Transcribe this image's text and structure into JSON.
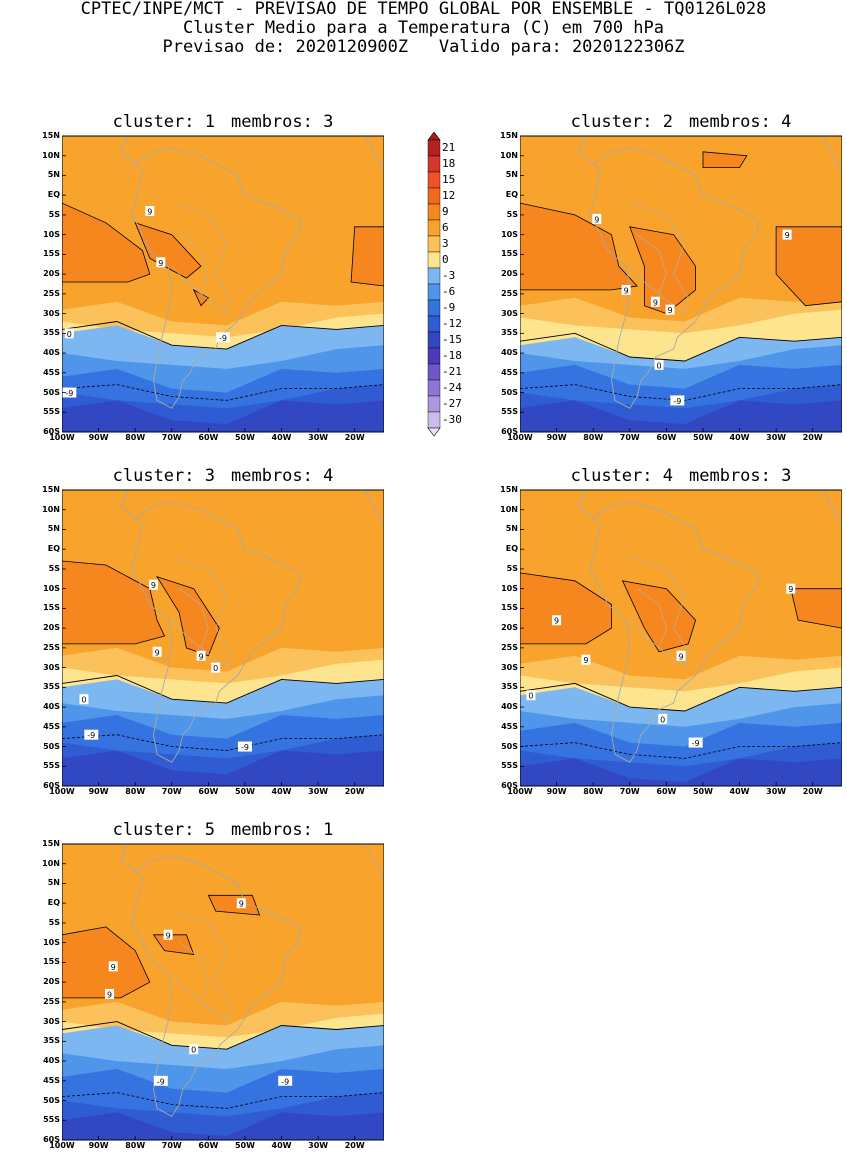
{
  "header": {
    "line1": "CPTEC/INPE/MCT - PREVISAO DE TEMPO GLOBAL POR ENSEMBLE - TQ0126L028",
    "line2": "Cluster Medio para a Temperatura (C) em 700 hPa",
    "line3_prefix": "Previsao de:",
    "forecast_date": "2020120900Z",
    "line3_valid_prefix": "Valido para:",
    "valid_date": "2020122306Z"
  },
  "axes": {
    "latitudes": [
      "15N",
      "10N",
      "5N",
      "EQ",
      "5S",
      "10S",
      "15S",
      "20S",
      "25S",
      "30S",
      "35S",
      "40S",
      "45S",
      "50S",
      "55S",
      "60S"
    ],
    "longitudes": [
      "100W",
      "90W",
      "80W",
      "70W",
      "60W",
      "50W",
      "40W",
      "30W",
      "20W"
    ]
  },
  "colorbar": {
    "levels": [
      "21",
      "18",
      "15",
      "12",
      "9",
      "6",
      "3",
      "0",
      "-3",
      "-6",
      "-9",
      "-12",
      "-15",
      "-18",
      "-21",
      "-24",
      "-27",
      "-30"
    ],
    "colors": [
      "#b22222",
      "#d8362a",
      "#f0502a",
      "#f26a22",
      "#f6871f",
      "#f8a42c",
      "#fbc25c",
      "#fde48f",
      "#7db7f1",
      "#4f95ea",
      "#3473e0",
      "#2f5bd3",
      "#3247c2",
      "#4a3bba",
      "#6e58c9",
      "#8d76d6",
      "#ab97e0",
      "#cbbcec"
    ],
    "low_color": "#e8e2f6",
    "high_color": "#a51e1e"
  },
  "clusters": [
    {
      "cluster_label": "cluster:",
      "cluster_number": "1",
      "members_label": "membros:",
      "members_count": "3",
      "contour_labels": [
        "9",
        "9",
        "0",
        "-9",
        "-9"
      ]
    },
    {
      "cluster_label": "cluster:",
      "cluster_number": "2",
      "members_label": "membros:",
      "members_count": "4",
      "contour_labels": [
        "9",
        "9",
        "9",
        "9",
        "9",
        "0",
        "-9"
      ]
    },
    {
      "cluster_label": "cluster:",
      "cluster_number": "3",
      "members_label": "membros:",
      "members_count": "4",
      "contour_labels": [
        "9",
        "9",
        "9",
        "0",
        "0",
        "-9",
        "-9"
      ]
    },
    {
      "cluster_label": "cluster:",
      "cluster_number": "4",
      "members_label": "membros:",
      "members_count": "3",
      "contour_labels": [
        "9",
        "9",
        "9",
        "9",
        "0",
        "0",
        "-9"
      ]
    },
    {
      "cluster_label": "cluster:",
      "cluster_number": "5",
      "members_label": "membros:",
      "members_count": "1",
      "contour_labels": [
        "9",
        "9",
        "9",
        "9",
        "0",
        "-9",
        "-9"
      ]
    }
  ]
}
